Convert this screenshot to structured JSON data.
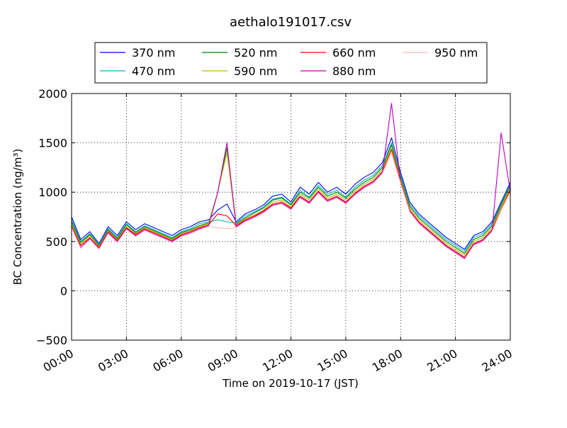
{
  "chart_data": {
    "type": "line",
    "title": "aethalo191017.csv",
    "xlabel": "Time on 2019-10-17 (JST)",
    "ylabel": "BC Concentration (ng/m³)",
    "xlim": [
      "00:00",
      "24:00"
    ],
    "ylim": [
      -500,
      2000
    ],
    "x_ticks": [
      "00:00",
      "03:00",
      "06:00",
      "09:00",
      "12:00",
      "15:00",
      "18:00",
      "21:00",
      "24:00"
    ],
    "y_ticks": [
      -500,
      0,
      500,
      1000,
      1500,
      2000
    ],
    "grid": true,
    "legend_position": "top",
    "x": [
      "00:00",
      "00:30",
      "01:00",
      "01:30",
      "02:00",
      "02:30",
      "03:00",
      "03:30",
      "04:00",
      "04:30",
      "05:00",
      "05:30",
      "06:00",
      "06:30",
      "07:00",
      "07:30",
      "08:00",
      "08:30",
      "09:00",
      "09:30",
      "10:00",
      "10:30",
      "11:00",
      "11:30",
      "12:00",
      "12:30",
      "13:00",
      "13:30",
      "14:00",
      "14:30",
      "15:00",
      "15:30",
      "16:00",
      "16:30",
      "17:00",
      "17:30",
      "18:00",
      "18:30",
      "19:00",
      "19:30",
      "20:00",
      "20:30",
      "21:00",
      "21:30",
      "22:00",
      "22:30",
      "23:00",
      "23:30",
      "24:00"
    ],
    "series": [
      {
        "name": "370 nm",
        "color": "#0000ff",
        "values": [
          750,
          520,
          600,
          480,
          650,
          560,
          700,
          620,
          680,
          640,
          600,
          560,
          620,
          650,
          700,
          720,
          820,
          880,
          700,
          780,
          820,
          870,
          960,
          980,
          900,
          1050,
          980,
          1100,
          1000,
          1050,
          980,
          1080,
          1150,
          1200,
          1300,
          1550,
          1200,
          900,
          780,
          700,
          620,
          540,
          480,
          420,
          560,
          600,
          700,
          900,
          1100
        ]
      },
      {
        "name": "470 nm",
        "color": "#00bbbb",
        "values": [
          720,
          500,
          580,
          470,
          630,
          540,
          680,
          600,
          660,
          620,
          580,
          540,
          600,
          630,
          680,
          700,
          720,
          700,
          690,
          760,
          800,
          850,
          930,
          950,
          880,
          1020,
          950,
          1070,
          980,
          1020,
          950,
          1050,
          1120,
          1170,
          1270,
          1500,
          1170,
          880,
          760,
          680,
          600,
          520,
          460,
          400,
          540,
          580,
          680,
          880,
          1080
        ]
      },
      {
        "name": "520 nm",
        "color": "#008000",
        "values": [
          700,
          490,
          570,
          460,
          620,
          530,
          670,
          590,
          650,
          610,
          570,
          530,
          590,
          620,
          660,
          690,
          1000,
          1450,
          680,
          740,
          790,
          840,
          920,
          940,
          870,
          1000,
          940,
          1050,
          960,
          1000,
          940,
          1030,
          1100,
          1150,
          1250,
          1480,
          1150,
          860,
          740,
          660,
          580,
          500,
          440,
          380,
          520,
          560,
          660,
          870,
          1060
        ]
      },
      {
        "name": "590 nm",
        "color": "#bbbb00",
        "values": [
          680,
          470,
          560,
          450,
          610,
          520,
          650,
          580,
          640,
          600,
          560,
          520,
          580,
          610,
          650,
          680,
          1000,
          1400,
          670,
          730,
          770,
          820,
          900,
          920,
          850,
          980,
          920,
          1030,
          940,
          980,
          920,
          1010,
          1080,
          1130,
          1230,
          1450,
          1130,
          840,
          720,
          640,
          560,
          480,
          420,
          360,
          500,
          540,
          640,
          850,
          1040
        ]
      },
      {
        "name": "660 nm",
        "color": "#ff0000",
        "values": [
          660,
          460,
          540,
          440,
          600,
          510,
          640,
          570,
          630,
          590,
          550,
          510,
          570,
          600,
          640,
          670,
          780,
          760,
          660,
          720,
          760,
          810,
          880,
          900,
          840,
          960,
          900,
          1010,
          920,
          960,
          900,
          990,
          1060,
          1110,
          1210,
          1430,
          1110,
          820,
          700,
          620,
          540,
          460,
          400,
          340,
          480,
          520,
          620,
          830,
          1020
        ]
      },
      {
        "name": "880 nm",
        "color": "#bb00bb",
        "values": [
          650,
          440,
          530,
          430,
          590,
          500,
          630,
          560,
          620,
          580,
          540,
          500,
          560,
          590,
          630,
          660,
          1000,
          1500,
          650,
          710,
          750,
          800,
          870,
          890,
          830,
          950,
          890,
          1000,
          910,
          950,
          890,
          980,
          1050,
          1100,
          1200,
          1900,
          1100,
          810,
          690,
          610,
          530,
          450,
          390,
          330,
          470,
          510,
          610,
          1600,
          1000
        ]
      },
      {
        "name": "950 nm",
        "color": "#ffbbbb",
        "values": [
          640,
          430,
          520,
          420,
          580,
          490,
          620,
          550,
          610,
          570,
          530,
          490,
          550,
          580,
          620,
          650,
          640,
          630,
          640,
          700,
          740,
          790,
          860,
          880,
          820,
          940,
          880,
          990,
          900,
          940,
          880,
          970,
          1040,
          1090,
          1190,
          1400,
          1090,
          800,
          680,
          600,
          520,
          440,
          380,
          320,
          460,
          500,
          600,
          820,
          1000
        ]
      }
    ]
  }
}
